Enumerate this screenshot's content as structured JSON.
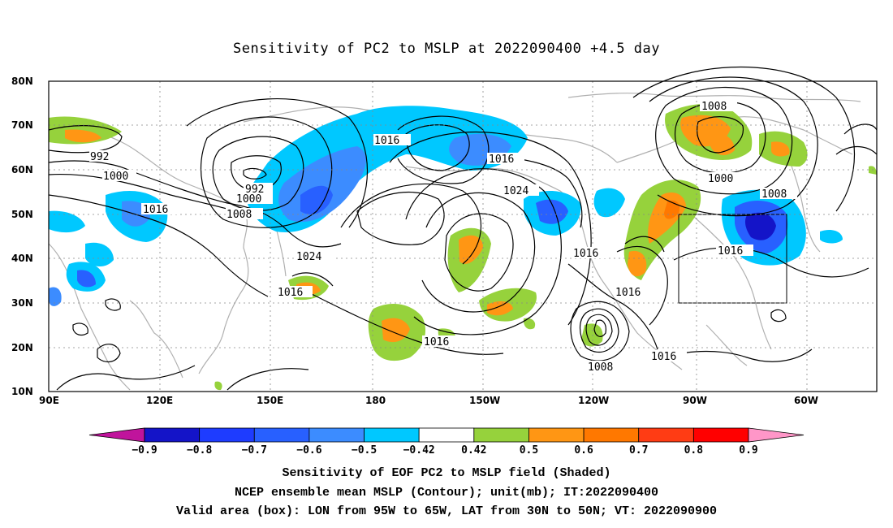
{
  "title": "Sensitivity of PC2 to MSLP at 2022090400 +4.5 day",
  "footer": {
    "line1": "Sensitivity of EOF PC2 to MSLP field (Shaded)",
    "line2": "NCEP ensemble mean MSLP (Contour); unit(mb); IT:2022090400",
    "line3": "Valid area (box): LON from 95W to 65W, LAT from 30N to 50N; VT: 2022090900"
  },
  "axes": {
    "lat_labels": [
      "80N",
      "70N",
      "60N",
      "50N",
      "40N",
      "30N",
      "20N",
      "10N"
    ],
    "lon_labels": [
      "90E",
      "120E",
      "150E",
      "180",
      "150W",
      "120W",
      "90W",
      "60W"
    ]
  },
  "contour_labels": [
    "992",
    "1000",
    "1016",
    "992",
    "1000",
    "1008",
    "1016",
    "1024",
    "1016",
    "1016",
    "1024",
    "1016",
    "1016",
    "1016",
    "1008",
    "1016",
    "1008",
    "1000",
    "1008",
    "1016"
  ],
  "colorbar": {
    "labels": [
      "-0.9",
      "-0.8",
      "-0.7",
      "-0.6",
      "-0.5",
      "-0.42",
      "0.42",
      "0.5",
      "0.6",
      "0.7",
      "0.8",
      "0.9"
    ],
    "colors": [
      "#c0149c",
      "#1414c8",
      "#1e3cff",
      "#2860ff",
      "#3c8cff",
      "#00c8ff",
      "#ffffff",
      "#96d23c",
      "#ff9614",
      "#ff7800",
      "#ff3c14",
      "#ff0000",
      "#ff96c8"
    ]
  },
  "box": {
    "lon_range": "95W to 65W",
    "lat_range": "30N to 50N"
  }
}
